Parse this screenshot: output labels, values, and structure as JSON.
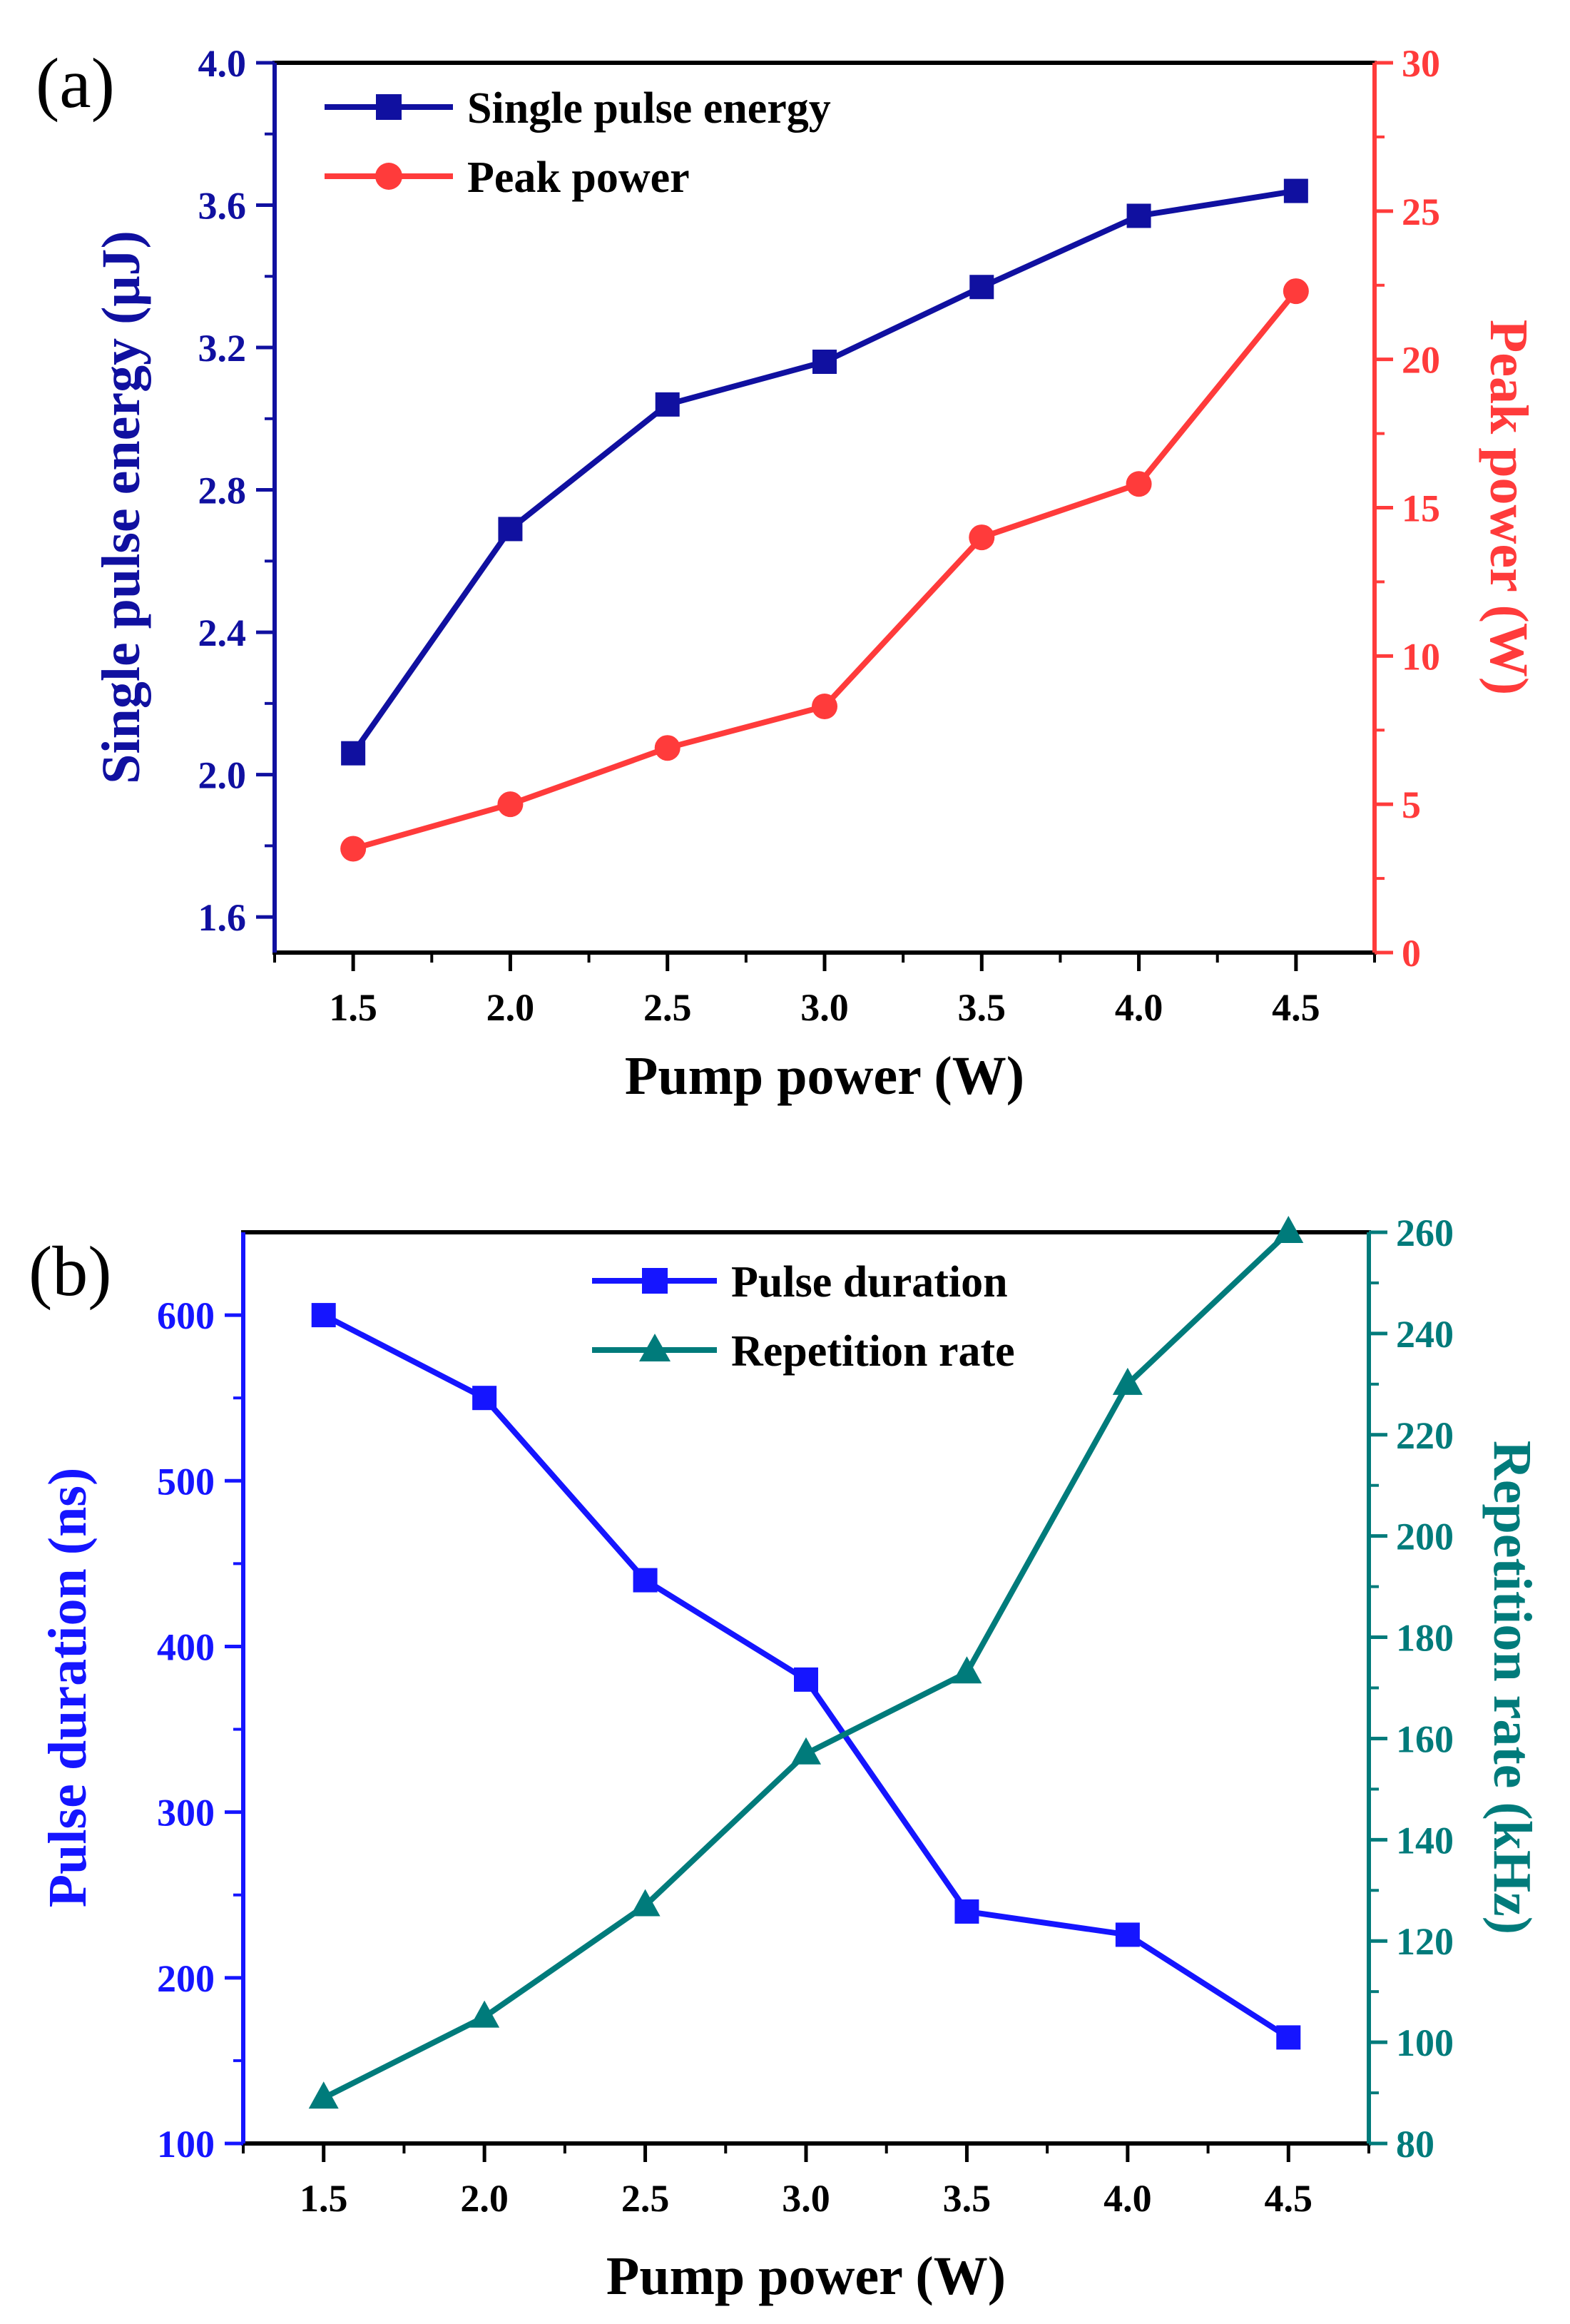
{
  "chart_data": [
    {
      "type": "line",
      "panel_label": "(a)",
      "x": [
        1.5,
        2.0,
        2.5,
        3.0,
        3.5,
        4.0,
        4.5
      ],
      "x_tick_labels": [
        "1.5",
        "2.0",
        "2.5",
        "3.0",
        "3.5",
        "4.0",
        "4.5"
      ],
      "xlabel": "Pump power (W)",
      "xlim": [
        1.25,
        4.75
      ],
      "left_axis": {
        "label": "Single pulse energy (μJ)",
        "ylim": [
          1.5,
          4.0
        ],
        "ticks": [
          1.6,
          2.0,
          2.4,
          2.8,
          3.2,
          3.6,
          4.0
        ],
        "tick_labels": [
          "1.6",
          "2.0",
          "2.4",
          "2.8",
          "3.2",
          "3.6",
          "4.0"
        ],
        "color": "#1010a0"
      },
      "right_axis": {
        "label": "Peak power (W)",
        "ylim": [
          0,
          30
        ],
        "ticks": [
          0,
          5,
          10,
          15,
          20,
          25,
          30
        ],
        "tick_labels": [
          "0",
          "5",
          "10",
          "15",
          "20",
          "25",
          "30"
        ],
        "color": "#ff3b3b"
      },
      "series": [
        {
          "name": "Single pulse energy",
          "axis": "left",
          "marker": "square",
          "color": "#1010a0",
          "values": [
            2.06,
            2.69,
            3.04,
            3.16,
            3.37,
            3.57,
            3.64
          ]
        },
        {
          "name": "Peak power",
          "axis": "right",
          "marker": "circle",
          "color": "#ff3b3b",
          "values": [
            3.5,
            5.0,
            6.9,
            8.3,
            14.0,
            15.8,
            22.3
          ]
        }
      ],
      "legend": "top-left",
      "grid": false
    },
    {
      "type": "line",
      "panel_label": "(b)",
      "x": [
        1.5,
        2.0,
        2.5,
        3.0,
        3.5,
        4.0,
        4.5
      ],
      "x_tick_labels": [
        "1.5",
        "2.0",
        "2.5",
        "3.0",
        "3.5",
        "4.0",
        "4.5"
      ],
      "xlabel": "Pump power (W)",
      "xlim": [
        1.25,
        4.75
      ],
      "left_axis": {
        "label": "Pulse duration (ns)",
        "ylim": [
          100,
          650
        ],
        "ticks": [
          100,
          200,
          300,
          400,
          500,
          600
        ],
        "tick_labels": [
          "100",
          "200",
          "300",
          "400",
          "500",
          "600"
        ],
        "color": "#1515ff"
      },
      "right_axis": {
        "label": "Repetition rate (kHz)",
        "ylim": [
          80,
          260
        ],
        "ticks": [
          80,
          100,
          120,
          140,
          160,
          180,
          200,
          220,
          240,
          260
        ],
        "tick_labels": [
          "80",
          "100",
          "120",
          "140",
          "160",
          "180",
          "200",
          "220",
          "240",
          "260"
        ],
        "color": "#007b7b"
      },
      "series": [
        {
          "name": "Pulse duration",
          "axis": "left",
          "marker": "square",
          "color": "#1515ff",
          "values": [
            600,
            550,
            440,
            380,
            240,
            226,
            164
          ]
        },
        {
          "name": "Repetition rate",
          "axis": "right",
          "marker": "triangle",
          "color": "#007b7b",
          "values": [
            89,
            105,
            127,
            157,
            173,
            230,
            260
          ]
        }
      ],
      "legend": "top-center",
      "grid": false
    }
  ]
}
